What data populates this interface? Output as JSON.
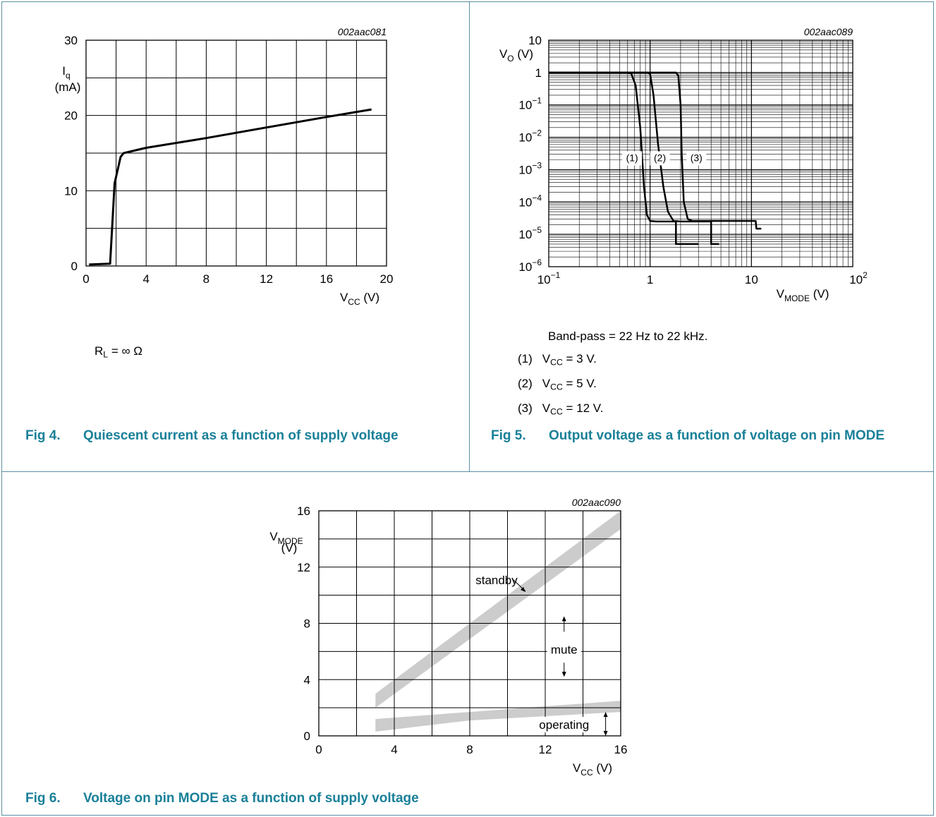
{
  "fig4": {
    "caption_num": "Fig 4.",
    "caption_title": "Quiescent current as a function of supply voltage",
    "note_prefix": "R",
    "note_sub": "L",
    "note_suffix": " = ∞ Ω"
  },
  "fig5": {
    "caption_num": "Fig 5.",
    "caption_title": "Output voltage as a function of voltage on pin MODE",
    "note_bandpass": "Band-pass = 22 Hz to 22 kHz.",
    "notes": [
      {
        "num": "(1)",
        "pre": "V",
        "sub": "CC",
        "post": " = 3 V."
      },
      {
        "num": "(2)",
        "pre": "V",
        "sub": "CC",
        "post": " = 5 V."
      },
      {
        "num": "(3)",
        "pre": "V",
        "sub": "CC",
        "post": " = 12 V."
      }
    ]
  },
  "fig6": {
    "caption_num": "Fig 6.",
    "caption_title": "Voltage on pin MODE as a function of supply voltage"
  },
  "chart_data": [
    {
      "type": "line",
      "id": "002aac081",
      "xlabel": "VCC (V)",
      "ylabel": "Iq (mA)",
      "xlim": [
        0,
        20
      ],
      "ylim": [
        0,
        30
      ],
      "xticks": [
        "0",
        "4",
        "8",
        "12",
        "16",
        "20"
      ],
      "yticks": [
        "0",
        "10",
        "20",
        "30"
      ],
      "grid": true,
      "series": [
        {
          "x": [
            0.2,
            1.6,
            1.9,
            2.3,
            2.5,
            4,
            8,
            12,
            16,
            19
          ],
          "y": [
            0.2,
            0.3,
            11,
            14.5,
            15,
            15.7,
            17,
            18.4,
            19.8,
            20.8
          ]
        }
      ]
    },
    {
      "type": "line",
      "id": "002aac089",
      "xlabel": "VMODE (V)",
      "ylabel": "VO (V)",
      "xscale": "log",
      "yscale": "log",
      "xlim": [
        0.1,
        100
      ],
      "ylim": [
        1e-06,
        10
      ],
      "xticks": [
        "10−1",
        "1",
        "10",
        "102"
      ],
      "yticks": [
        "10",
        "1",
        "10−1",
        "10−2",
        "10−3",
        "10−4",
        "10−5",
        "10−6"
      ],
      "grid": true,
      "series": [
        {
          "name": "(1)",
          "x": [
            0.1,
            0.6,
            0.65,
            0.72,
            0.8,
            0.87,
            0.93,
            1.0,
            1.15,
            1.5,
            1.8,
            1.8,
            3
          ],
          "y": [
            1,
            1,
            0.95,
            0.4,
            0.02,
            0.0003,
            4e-05,
            2.6e-05,
            2.5e-05,
            2.5e-05,
            2.5e-05,
            5e-06,
            5e-06
          ]
        },
        {
          "name": "(2)",
          "x": [
            0.1,
            0.95,
            1.0,
            1.08,
            1.2,
            1.35,
            1.5,
            1.7,
            2.0,
            4,
            4,
            4.8
          ],
          "y": [
            1,
            1,
            0.9,
            0.2,
            0.006,
            0.0003,
            5e-05,
            2.6e-05,
            2.5e-05,
            2.5e-05,
            5e-06,
            5e-06
          ]
        },
        {
          "name": "(3)",
          "x": [
            0.1,
            1.8,
            1.9,
            2.0,
            2.05,
            2.15,
            2.35,
            2.6,
            5,
            11,
            11.2,
            12.5
          ],
          "y": [
            1,
            1,
            0.8,
            0.1,
            0.003,
            0.0001,
            3e-05,
            2.6e-05,
            2.6e-05,
            2.6e-05,
            1.5e-05,
            1.5e-05
          ]
        }
      ],
      "annotations": [
        "(1)",
        "(2)",
        "(3)"
      ]
    },
    {
      "type": "area",
      "id": "002aac090",
      "xlabel": "VCC (V)",
      "ylabel": "VMODE (V)",
      "xlim": [
        0,
        16
      ],
      "ylim": [
        0,
        16
      ],
      "xticks": [
        "0",
        "4",
        "8",
        "12",
        "16"
      ],
      "yticks": [
        "0",
        "4",
        "8",
        "12",
        "16"
      ],
      "grid": true,
      "bands": [
        {
          "x": [
            3,
            16
          ],
          "y_low": [
            2,
            14.7
          ],
          "y_high": [
            3,
            16
          ]
        },
        {
          "x": [
            3,
            8,
            12,
            16
          ],
          "y_low": [
            0.3,
            1.1,
            1.4,
            1.7
          ],
          "y_high": [
            1.2,
            1.7,
            2.1,
            2.5
          ]
        }
      ],
      "annotations": [
        "standby",
        "mute",
        "operating"
      ]
    }
  ]
}
